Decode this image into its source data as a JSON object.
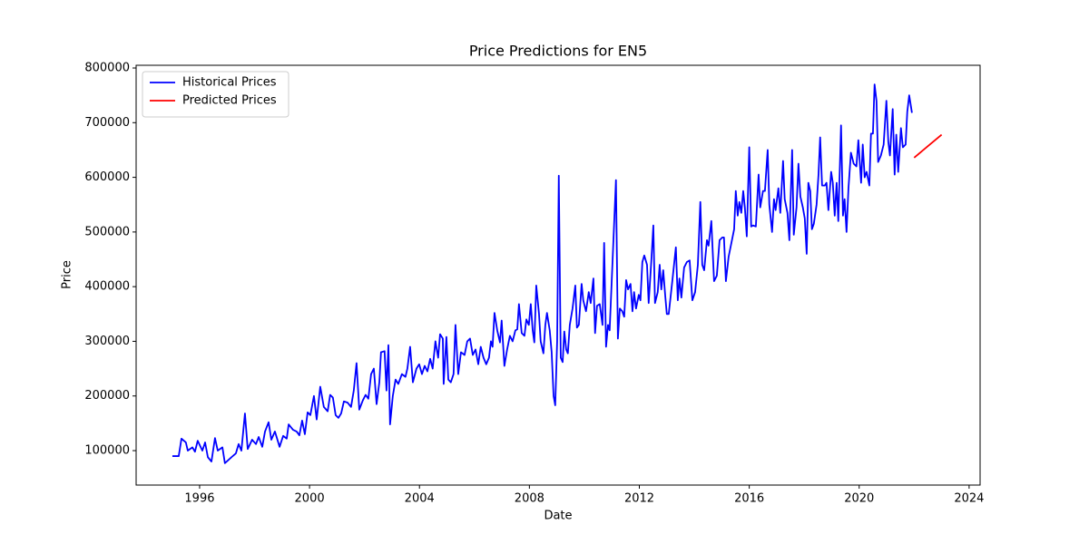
{
  "chart_data": {
    "type": "line",
    "title": "Price Predictions for EN5",
    "x_label": "Date",
    "y_label": "Price",
    "xlim": [
      1993.69,
      2024.4
    ],
    "ylim": [
      37000,
      805000
    ],
    "xticks": [
      1996,
      2000,
      2004,
      2008,
      2012,
      2016,
      2020,
      2024
    ],
    "yticks": [
      100000,
      200000,
      300000,
      400000,
      500000,
      600000,
      700000,
      800000
    ],
    "grid": false,
    "legend": "upper left",
    "series": [
      {
        "name": "Historical Prices",
        "color": "#0000ff",
        "x": [
          1995.01,
          1995.24,
          1995.34,
          1995.5,
          1995.57,
          1995.74,
          1995.83,
          1995.93,
          1996.1,
          1996.2,
          1996.3,
          1996.43,
          1996.56,
          1996.66,
          1996.83,
          1996.92,
          1997.16,
          1997.32,
          1997.42,
          1997.52,
          1997.65,
          1997.75,
          1997.91,
          1998.05,
          1998.15,
          1998.28,
          1998.38,
          1998.51,
          1998.61,
          1998.74,
          1998.91,
          1999.04,
          1999.17,
          1999.24,
          1999.4,
          1999.53,
          1999.63,
          1999.73,
          1999.83,
          1999.93,
          2000.03,
          2000.16,
          2000.26,
          2000.39,
          2000.52,
          2000.66,
          2000.75,
          2000.85,
          2000.95,
          2001.05,
          2001.15,
          2001.25,
          2001.38,
          2001.51,
          2001.61,
          2001.71,
          2001.81,
          2001.94,
          2002.04,
          2002.14,
          2002.24,
          2002.34,
          2002.44,
          2002.54,
          2002.6,
          2002.73,
          2002.8,
          2002.87,
          2002.93,
          2003.03,
          2003.13,
          2003.23,
          2003.36,
          2003.49,
          2003.56,
          2003.66,
          2003.76,
          2003.89,
          2003.99,
          2004.09,
          2004.19,
          2004.29,
          2004.39,
          2004.48,
          2004.58,
          2004.68,
          2004.75,
          2004.85,
          2004.88,
          2004.98,
          2005.05,
          2005.14,
          2005.24,
          2005.31,
          2005.41,
          2005.51,
          2005.64,
          2005.74,
          2005.84,
          2005.94,
          2006.04,
          2006.14,
          2006.23,
          2006.33,
          2006.43,
          2006.53,
          2006.6,
          2006.66,
          2006.73,
          2006.83,
          2006.93,
          2006.99,
          2007.09,
          2007.19,
          2007.29,
          2007.39,
          2007.49,
          2007.56,
          2007.62,
          2007.72,
          2007.82,
          2007.89,
          2007.98,
          2008.05,
          2008.12,
          2008.18,
          2008.25,
          2008.35,
          2008.41,
          2008.51,
          2008.58,
          2008.64,
          2008.74,
          2008.81,
          2008.88,
          2008.94,
          2009.01,
          2009.07,
          2009.14,
          2009.21,
          2009.27,
          2009.34,
          2009.4,
          2009.47,
          2009.57,
          2009.67,
          2009.73,
          2009.8,
          2009.9,
          2009.96,
          2010.06,
          2010.16,
          2010.23,
          2010.33,
          2010.39,
          2010.46,
          2010.56,
          2010.66,
          2010.72,
          2010.79,
          2010.86,
          2010.92,
          2011.15,
          2011.22,
          2011.29,
          2011.38,
          2011.45,
          2011.52,
          2011.59,
          2011.68,
          2011.75,
          2011.81,
          2011.88,
          2011.98,
          2012.04,
          2012.11,
          2012.18,
          2012.28,
          2012.34,
          2012.44,
          2012.51,
          2012.57,
          2012.67,
          2012.74,
          2012.8,
          2012.87,
          2012.94,
          2013.0,
          2013.07,
          2013.2,
          2013.33,
          2013.4,
          2013.46,
          2013.53,
          2013.63,
          2013.73,
          2013.83,
          2013.93,
          2014.03,
          2014.13,
          2014.22,
          2014.29,
          2014.36,
          2014.46,
          2014.52,
          2014.62,
          2014.72,
          2014.82,
          2014.92,
          2015.02,
          2015.08,
          2015.15,
          2015.25,
          2015.35,
          2015.45,
          2015.51,
          2015.58,
          2015.64,
          2015.71,
          2015.78,
          2015.84,
          2015.91,
          2016.0,
          2016.07,
          2016.14,
          2016.24,
          2016.34,
          2016.4,
          2016.5,
          2016.57,
          2016.67,
          2016.73,
          2016.83,
          2016.9,
          2016.96,
          2017.06,
          2017.13,
          2017.23,
          2017.29,
          2017.39,
          2017.46,
          2017.56,
          2017.62,
          2017.72,
          2017.79,
          2017.86,
          2017.95,
          2018.02,
          2018.09,
          2018.15,
          2018.22,
          2018.28,
          2018.35,
          2018.45,
          2018.52,
          2018.58,
          2018.65,
          2018.75,
          2018.81,
          2018.88,
          2018.98,
          2019.04,
          2019.11,
          2019.18,
          2019.24,
          2019.34,
          2019.41,
          2019.47,
          2019.54,
          2019.61,
          2019.7,
          2019.8,
          2019.9,
          2019.97,
          2020.07,
          2020.13,
          2020.2,
          2020.27,
          2020.37,
          2020.43,
          2020.5,
          2020.56,
          2020.63,
          2020.69,
          2020.79,
          2020.89,
          2020.99,
          2021.06,
          2021.12,
          2021.22,
          2021.29,
          2021.35,
          2021.42,
          2021.52,
          2021.59,
          2021.69,
          2021.75,
          2021.82,
          2021.92
        ],
        "values": [
          90000,
          90000,
          122000,
          115000,
          100000,
          106000,
          98000,
          118000,
          100000,
          115000,
          88000,
          80000,
          123000,
          100000,
          106000,
          77000,
          88000,
          95000,
          112000,
          100000,
          168000,
          103000,
          120000,
          112000,
          125000,
          107000,
          135000,
          152000,
          120000,
          135000,
          107000,
          127000,
          122000,
          148000,
          138000,
          135000,
          128000,
          155000,
          130000,
          170000,
          165000,
          200000,
          157000,
          217000,
          180000,
          172000,
          202000,
          197000,
          165000,
          160000,
          168000,
          190000,
          188000,
          180000,
          210000,
          260000,
          175000,
          192000,
          202000,
          195000,
          240000,
          250000,
          185000,
          225000,
          280000,
          282000,
          210000,
          293000,
          148000,
          200000,
          230000,
          222000,
          240000,
          235000,
          250000,
          290000,
          225000,
          250000,
          258000,
          240000,
          255000,
          245000,
          268000,
          250000,
          300000,
          270000,
          313000,
          305000,
          222000,
          308000,
          230000,
          225000,
          240000,
          330000,
          240000,
          280000,
          275000,
          300000,
          305000,
          275000,
          285000,
          258000,
          290000,
          270000,
          258000,
          270000,
          300000,
          290000,
          352000,
          320000,
          298000,
          338000,
          255000,
          285000,
          310000,
          300000,
          320000,
          322000,
          368000,
          315000,
          310000,
          340000,
          330000,
          368000,
          320000,
          298000,
          402000,
          350000,
          300000,
          278000,
          330000,
          352000,
          320000,
          280000,
          200000,
          183000,
          300000,
          603000,
          270000,
          262000,
          318000,
          285000,
          278000,
          330000,
          360000,
          402000,
          325000,
          330000,
          405000,
          375000,
          355000,
          390000,
          370000,
          415000,
          315000,
          365000,
          368000,
          330000,
          480000,
          290000,
          330000,
          320000,
          595000,
          305000,
          360000,
          355000,
          345000,
          412000,
          395000,
          405000,
          355000,
          390000,
          360000,
          385000,
          375000,
          445000,
          457000,
          440000,
          370000,
          450000,
          512000,
          370000,
          390000,
          440000,
          395000,
          430000,
          385000,
          350000,
          350000,
          410000,
          472000,
          375000,
          415000,
          380000,
          435000,
          445000,
          448000,
          375000,
          390000,
          440000,
          555000,
          440000,
          430000,
          485000,
          475000,
          520000,
          410000,
          420000,
          485000,
          490000,
          490000,
          410000,
          455000,
          480000,
          505000,
          575000,
          530000,
          555000,
          535000,
          575000,
          545000,
          492000,
          655000,
          510000,
          512000,
          510000,
          605000,
          545000,
          575000,
          575000,
          650000,
          550000,
          500000,
          560000,
          540000,
          580000,
          535000,
          630000,
          560000,
          535000,
          485000,
          650000,
          495000,
          545000,
          625000,
          565000,
          545000,
          525000,
          460000,
          590000,
          575000,
          505000,
          515000,
          550000,
          605000,
          673000,
          585000,
          585000,
          590000,
          540000,
          610000,
          590000,
          530000,
          590000,
          520000,
          695000,
          530000,
          560000,
          500000,
          580000,
          645000,
          625000,
          620000,
          668000,
          590000,
          660000,
          600000,
          610000,
          585000,
          680000,
          680000,
          770000,
          740000,
          628000,
          640000,
          660000,
          740000,
          665000,
          640000,
          725000,
          605000,
          678000,
          610000,
          690000,
          655000,
          660000,
          720000,
          750000,
          718000
        ]
      },
      {
        "name": "Predicted Prices",
        "color": "#ff0000",
        "x": [
          2022.0,
          2022.5,
          2023.0
        ],
        "values": [
          636000,
          657000,
          678000
        ]
      }
    ]
  }
}
